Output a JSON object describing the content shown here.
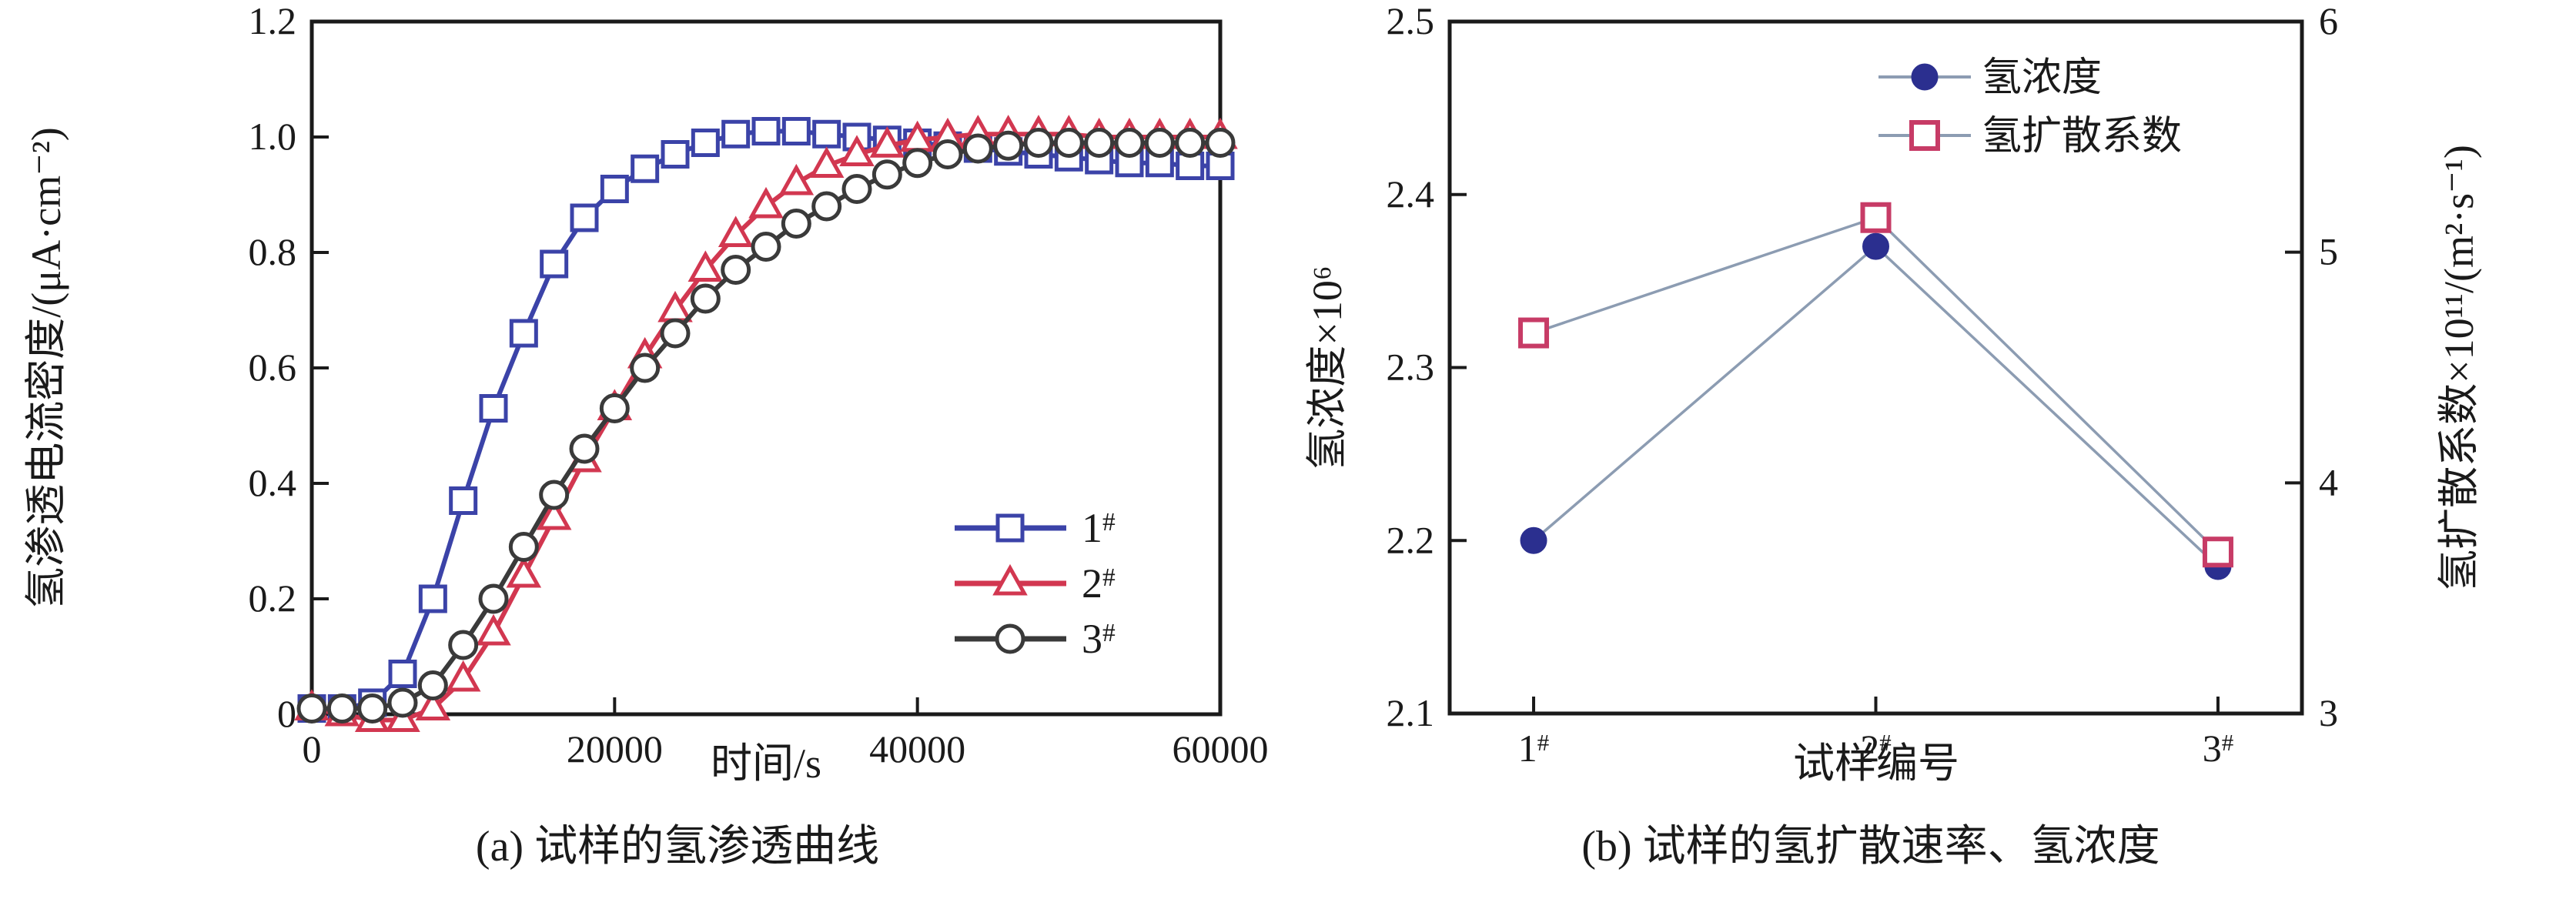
{
  "figure": {
    "description": "两幅氢渗透实验图",
    "panel_a_caption": "(a) 试样的氢渗透曲线",
    "panel_b_caption": "(b) 试样的氢扩散速率、氢浓度"
  },
  "panel_a": {
    "y_axis_label": "氢渗透电流密度/(μA·cm⁻²)",
    "x_axis_label": "时间/s",
    "caption": "(a) 试样的氢渗透曲线"
  },
  "panel_b": {
    "y_axis_label_left": "氢浓度×10⁶",
    "y_axis_label_right": "氢扩散系数×10¹¹/(m²·s⁻¹)",
    "x_axis_label": "试样编号",
    "caption": "(b) 试样的氢扩散速率、氢浓度"
  },
  "colors": {
    "series1_blue": "#3b43a8",
    "series2_red": "#d23750",
    "series3_black": "#3a3a3a",
    "concentration_blue": "#2b2f8f",
    "diffusion_pink": "#c73b66",
    "connector_gray": "#8c9cb2",
    "axis": "#1a1a1a"
  },
  "chart_data": [
    {
      "type": "line",
      "title": "(a) 试样的氢渗透曲线",
      "xlabel": "时间/s",
      "ylabel": "氢渗透电流密度/(μA·cm⁻²)",
      "xlim": [
        0,
        60000
      ],
      "ylim": [
        0,
        1.2
      ],
      "x_ticks": [
        0,
        20000,
        40000,
        60000
      ],
      "x_tick_labels": [
        "0",
        "20000",
        "40000",
        "60000"
      ],
      "y_ticks": [
        0,
        0.2,
        0.4,
        0.6,
        0.8,
        1.0,
        1.2
      ],
      "y_tick_labels": [
        "0",
        "0.2",
        "0.4",
        "0.6",
        "0.8",
        "1.0",
        "1.2"
      ],
      "grid": false,
      "legend_position": "inside-right",
      "x": [
        0,
        2000,
        4000,
        6000,
        8000,
        10000,
        12000,
        14000,
        16000,
        18000,
        20000,
        22000,
        24000,
        26000,
        28000,
        30000,
        32000,
        34000,
        36000,
        38000,
        40000,
        42000,
        44000,
        46000,
        48000,
        50000,
        52000,
        54000,
        56000,
        58000,
        60000
      ],
      "series": [
        {
          "name": "1#",
          "marker": "square",
          "color": "#3b43a8",
          "values": [
            0.01,
            0.01,
            0.02,
            0.07,
            0.2,
            0.37,
            0.53,
            0.66,
            0.78,
            0.86,
            0.91,
            0.945,
            0.97,
            0.99,
            1.005,
            1.01,
            1.01,
            1.005,
            1.0,
            0.995,
            0.99,
            0.985,
            0.98,
            0.975,
            0.97,
            0.965,
            0.96,
            0.955,
            0.955,
            0.95,
            0.95
          ]
        },
        {
          "name": "2#",
          "marker": "triangle",
          "color": "#d23750",
          "values": [
            0.01,
            0.0,
            -0.01,
            -0.01,
            0.01,
            0.06,
            0.14,
            0.24,
            0.34,
            0.44,
            0.53,
            0.62,
            0.7,
            0.77,
            0.83,
            0.88,
            0.92,
            0.95,
            0.97,
            0.985,
            0.995,
            1.0,
            1.005,
            1.005,
            1.005,
            1.005,
            1.0,
            1.0,
            1.0,
            1.0,
            1.0
          ]
        },
        {
          "name": "3#",
          "marker": "circle",
          "color": "#3a3a3a",
          "values": [
            0.01,
            0.01,
            0.01,
            0.02,
            0.05,
            0.12,
            0.2,
            0.29,
            0.38,
            0.46,
            0.53,
            0.6,
            0.66,
            0.72,
            0.77,
            0.81,
            0.85,
            0.88,
            0.91,
            0.935,
            0.955,
            0.97,
            0.98,
            0.985,
            0.99,
            0.99,
            0.99,
            0.99,
            0.99,
            0.99,
            0.99
          ]
        }
      ]
    },
    {
      "type": "line",
      "title": "(b) 试样的氢扩散速率、氢浓度",
      "xlabel": "试样编号",
      "ylabel_left": "氢浓度×10⁶",
      "ylabel_right": "氢扩散系数×10¹¹/(m²·s⁻¹)",
      "categories": [
        "1#",
        "2#",
        "3#"
      ],
      "ylim_left": [
        2.1,
        2.5
      ],
      "y_ticks_left": [
        "2.1",
        "2.2",
        "2.3",
        "2.4",
        "2.5"
      ],
      "ylim_right": [
        3,
        6
      ],
      "y_ticks_right": [
        "3",
        "4",
        "5",
        "6"
      ],
      "grid": false,
      "legend_position": "inside-top-right",
      "connector_color": "#8c9cb2",
      "series": [
        {
          "name": "氢浓度",
          "axis": "left",
          "marker": "circle-filled",
          "color": "#2b2f8f",
          "values": [
            2.2,
            2.37,
            2.185
          ]
        },
        {
          "name": "氢扩散系数",
          "axis": "right",
          "marker": "square-open",
          "color": "#c73b66",
          "values": [
            4.65,
            5.15,
            3.7
          ]
        }
      ]
    }
  ]
}
